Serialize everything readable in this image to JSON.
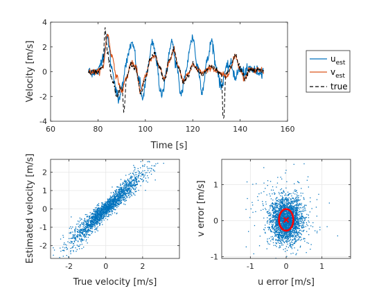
{
  "chart_data": [
    {
      "id": "timeseries",
      "type": "line",
      "xlabel": "Time [s]",
      "ylabel": "Velocity [m/s]",
      "xlim": [
        60,
        160
      ],
      "ylim": [
        -4,
        4
      ],
      "xticks": [
        60,
        80,
        100,
        120,
        140,
        160
      ],
      "yticks": [
        -4,
        -2,
        0,
        2,
        4
      ],
      "grid": false,
      "legend": {
        "placement": "outside-right",
        "entries": [
          {
            "main": "u",
            "sub": "est",
            "style": "solid",
            "color": "#0072BD"
          },
          {
            "main": "v",
            "sub": "est",
            "style": "solid",
            "color": "#D95319"
          },
          {
            "main": "true",
            "sub": "",
            "style": "dashed",
            "color": "#000000"
          }
        ]
      },
      "series": [
        {
          "name": "u_est",
          "color": "#0072BD",
          "x": [
            76,
            80,
            82,
            84,
            86,
            88,
            89,
            90,
            92,
            94,
            95,
            97,
            99,
            101,
            103,
            105,
            106,
            107,
            109,
            111,
            113,
            115,
            117,
            119,
            120,
            122,
            124,
            126,
            128,
            130,
            132,
            134,
            136,
            138,
            140,
            142,
            144,
            146,
            148,
            150
          ],
          "y": [
            0,
            0,
            1.2,
            2.7,
            0.2,
            -1.8,
            -2.4,
            -1.2,
            0.8,
            2.2,
            2.0,
            -0.5,
            -2.1,
            0.3,
            2.3,
            0.8,
            -1.6,
            -1.8,
            0.2,
            2.5,
            0.6,
            -1.8,
            -0.2,
            2.2,
            2.8,
            0.4,
            -1.5,
            0.8,
            2.5,
            0.3,
            -1.2,
            0.2,
            0.6,
            -0.4,
            0.2,
            -0.1,
            0.3,
            0.1,
            0.0,
            0.1
          ]
        },
        {
          "name": "v_est",
          "color": "#D95319",
          "x": [
            76,
            80,
            82,
            84,
            86,
            88,
            90,
            92,
            94,
            96,
            98,
            100,
            102,
            104,
            106,
            108,
            110,
            112,
            114,
            116,
            118,
            120,
            122,
            124,
            126,
            128,
            130,
            132,
            134,
            136,
            138,
            140,
            142,
            144,
            146,
            148,
            150
          ],
          "y": [
            0,
            0,
            0.3,
            3.0,
            1.2,
            -0.5,
            -1.6,
            -0.5,
            0.7,
            0.3,
            -1.6,
            -0.4,
            0.9,
            1.3,
            0.4,
            -0.6,
            0.8,
            1.7,
            0.4,
            -0.8,
            -0.2,
            0.5,
            0.2,
            -0.1,
            0.1,
            0.4,
            0.0,
            -0.2,
            -0.4,
            0.3,
            1.3,
            0.2,
            -0.6,
            0.3,
            0.1,
            0.2,
            0.0
          ]
        },
        {
          "name": "true",
          "color": "#000000",
          "dashed": true,
          "x": [
            76,
            80,
            82,
            83,
            84,
            86,
            88,
            90,
            91,
            92,
            94,
            96,
            98,
            100,
            102,
            104,
            106,
            108,
            110,
            112,
            114,
            116,
            118,
            120,
            122,
            124,
            126,
            128,
            130,
            132,
            133,
            134,
            136,
            138,
            140,
            142,
            144,
            146,
            148,
            150
          ],
          "y": [
            0,
            0,
            0.4,
            3.4,
            1.6,
            -0.6,
            -2.0,
            -1.2,
            -3.3,
            -0.5,
            0.6,
            0.2,
            -1.8,
            -0.6,
            1.0,
            1.4,
            0.3,
            -0.7,
            0.9,
            1.8,
            0.3,
            -0.9,
            -0.3,
            0.6,
            0.2,
            -0.2,
            0.2,
            0.5,
            0.1,
            -0.2,
            -3.9,
            -0.3,
            0.4,
            1.4,
            0.3,
            -0.5,
            0.2,
            0.1,
            0.1,
            0.0
          ]
        }
      ]
    },
    {
      "id": "est-vs-true",
      "type": "scatter",
      "xlabel": "True velocity [m/s]",
      "ylabel": "Estimated velocity [m/s]",
      "xlim": [
        -3,
        4
      ],
      "ylim": [
        -2.7,
        2.7
      ],
      "xticks": [
        -2,
        0,
        2
      ],
      "yticks": [
        -2,
        -1,
        0,
        1,
        2
      ],
      "grid": true,
      "color": "#0072BD",
      "description_of_cloud": "linear relation, slope approximately 1, n approx 2000",
      "slope": 0.95,
      "spread": 0.3,
      "n_points": 2000
    },
    {
      "id": "error-scatter",
      "type": "scatter",
      "xlabel": "u error [m/s]",
      "ylabel": "v error [m/s]",
      "xlim": [
        -1.8,
        1.8
      ],
      "ylim": [
        -1.05,
        1.7
      ],
      "xticks": [
        -1,
        0,
        1
      ],
      "yticks": [
        -1,
        0,
        1
      ],
      "grid": true,
      "color": "#0072BD",
      "n_points": 2500,
      "std_u": 0.22,
      "std_v": 0.3,
      "mean": [
        0.0,
        0.02
      ],
      "ellipse": {
        "center": [
          0.0,
          0.02
        ],
        "rx": 0.2,
        "ry": 0.3,
        "color": "#FF0000"
      },
      "mean_marker": {
        "symbol": "x",
        "color": "#FF0000"
      }
    }
  ]
}
